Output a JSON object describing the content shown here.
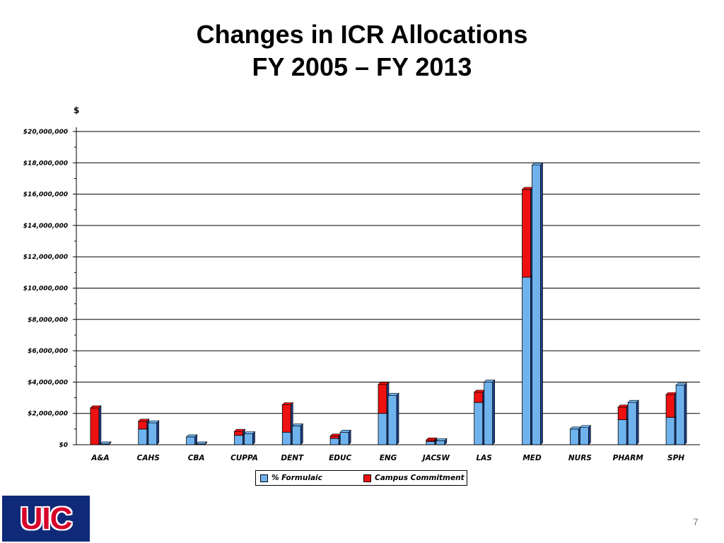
{
  "slide": {
    "title_line1": "Changes in ICR Allocations",
    "title_line2": "FY 2005 – FY 2013",
    "page_number": "7",
    "logo_text": "UIC"
  },
  "chart_data": {
    "type": "bar",
    "stacked": true,
    "title": "Changes in ICR Allocations FY 2005 – FY 2013",
    "ylabel": "$",
    "xlabel": "",
    "ylim": [
      0,
      20000000
    ],
    "grid": true,
    "legend_position": "bottom-center",
    "yticks": [
      "$0",
      "$2,000,000",
      "$4,000,000",
      "$6,000,000",
      "$8,000,000",
      "$10,000,000",
      "$12,000,000",
      "$14,000,000",
      "$16,000,000",
      "$18,000,000",
      "$20,000,000"
    ],
    "categories": [
      "A&A",
      "CAHS",
      "CBA",
      "CUPPA",
      "DENT",
      "EDUC",
      "ENG",
      "JACSW",
      "LAS",
      "MED",
      "NURS",
      "PHARM",
      "SPH"
    ],
    "series": [
      {
        "name": "% Formulaic",
        "color": "#6fb3ee",
        "fy2005": [
          0,
          1000000,
          500000,
          600000,
          800000,
          400000,
          2000000,
          200000,
          2700000,
          10700000,
          1000000,
          1600000,
          1750000
        ],
        "fy2013": [
          50000,
          1400000,
          50000,
          700000,
          1200000,
          800000,
          3150000,
          250000,
          4000000,
          17850000,
          1100000,
          2700000,
          3800000
        ]
      },
      {
        "name": "Campus Commitment",
        "color": "#ee1111",
        "fy2005": [
          2350000,
          500000,
          0,
          250000,
          1750000,
          150000,
          1850000,
          100000,
          650000,
          5600000,
          0,
          800000,
          1450000
        ],
        "fy2013": [
          0,
          0,
          0,
          0,
          0,
          0,
          0,
          0,
          0,
          0,
          0,
          0,
          0
        ]
      }
    ]
  }
}
